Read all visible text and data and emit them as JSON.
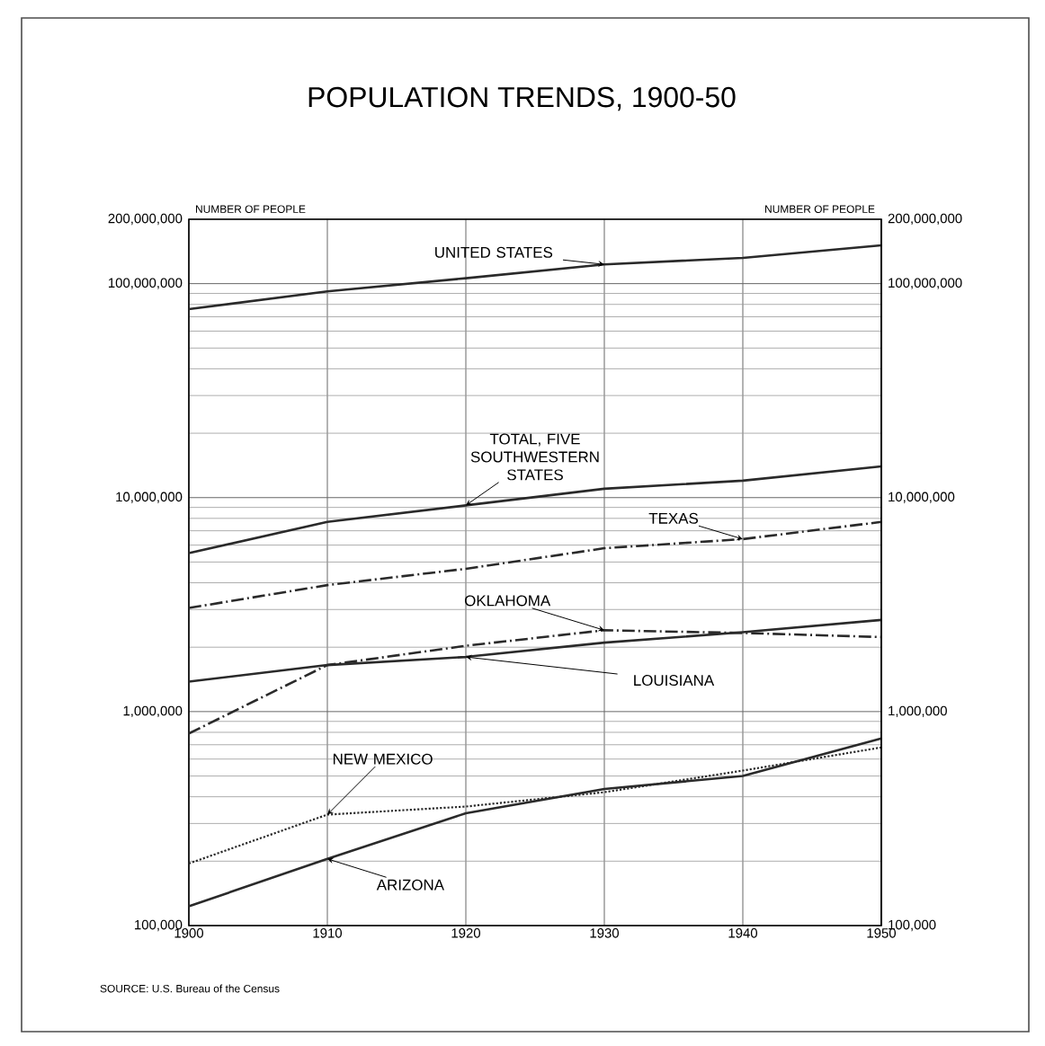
{
  "chart_data": {
    "type": "line",
    "title": "POPULATION TRENDS, 1900-50",
    "ylabel": "NUMBER OF PEOPLE",
    "x": [
      1900,
      1910,
      1920,
      1930,
      1940,
      1950
    ],
    "series": [
      {
        "name": "UNITED STATES",
        "color": "#2a2a2a",
        "line_style": "solid",
        "values": [
          76000000,
          92000000,
          106000000,
          123000000,
          132000000,
          151000000
        ]
      },
      {
        "name": "TOTAL, FIVE SOUTHWESTERN STATES",
        "color": "#2a2a2a",
        "line_style": "solid",
        "values": [
          5500000,
          7700000,
          9200000,
          11000000,
          12000000,
          14000000
        ]
      },
      {
        "name": "TEXAS",
        "color": "#2a2a2a",
        "line_style": "dashed",
        "values": [
          3050000,
          3900000,
          4650000,
          5800000,
          6400000,
          7700000
        ]
      },
      {
        "name": "OKLAHOMA",
        "color": "#2a2a2a",
        "line_style": "dashed",
        "values": [
          790000,
          1650000,
          2030000,
          2400000,
          2330000,
          2230000
        ]
      },
      {
        "name": "LOUISIANA",
        "color": "#2a2a2a",
        "line_style": "solid",
        "values": [
          1380000,
          1650000,
          1800000,
          2100000,
          2350000,
          2680000
        ]
      },
      {
        "name": "NEW MEXICO",
        "color": "#2a2a2a",
        "line_style": "dotted",
        "values": [
          195000,
          330000,
          360000,
          420000,
          530000,
          680000
        ]
      },
      {
        "name": "ARIZONA",
        "color": "#2a2a2a",
        "line_style": "solid",
        "values": [
          123000,
          205000,
          335000,
          435000,
          500000,
          750000
        ]
      }
    ],
    "log": "y",
    "grid": true,
    "xlim": [
      1900,
      1950
    ],
    "xticks": [
      1900,
      1910,
      1920,
      1930,
      1940,
      1950
    ],
    "ylim": [
      100000,
      200000000
    ],
    "yticks": [
      {
        "value": 100000,
        "label": "100,000"
      },
      {
        "value": 1000000,
        "label": "1,000,000"
      },
      {
        "value": 10000000,
        "label": "10,000,000"
      },
      {
        "value": 100000000,
        "label": "100,000,000"
      },
      {
        "value": 200000000,
        "label": "200,000,000"
      }
    ],
    "annotations": [
      "SOURCE: U.S. Bureau of the Census"
    ]
  }
}
